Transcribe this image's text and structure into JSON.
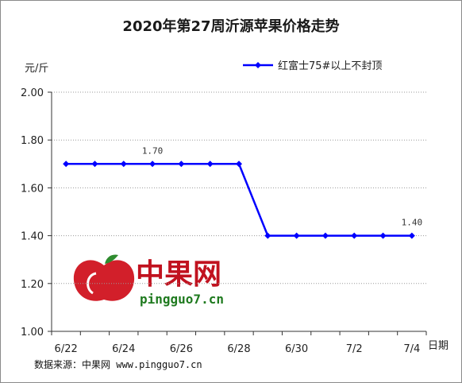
{
  "chart_data": {
    "type": "line",
    "title": "2020年第27周沂源苹果价格走势",
    "ylabel": "元/斤",
    "xlabel": "日期",
    "ylim": [
      1.0,
      2.0
    ],
    "yticks": [
      "2.00",
      "1.80",
      "1.60",
      "1.40",
      "1.20",
      "1.00"
    ],
    "xticks": [
      "6/22",
      "6/24",
      "6/26",
      "6/28",
      "6/30",
      "7/2",
      "7/4"
    ],
    "x": [
      "6/22",
      "6/23",
      "6/24",
      "6/25",
      "6/26",
      "6/27",
      "6/28",
      "6/29",
      "6/30",
      "7/1",
      "7/2",
      "7/3",
      "7/4"
    ],
    "series": [
      {
        "name": "红富士75#以上不封顶",
        "values": [
          1.7,
          1.7,
          1.7,
          1.7,
          1.7,
          1.7,
          1.7,
          1.4,
          1.4,
          1.4,
          1.4,
          1.4,
          1.4
        ],
        "color": "#0000ff"
      }
    ],
    "data_labels": [
      {
        "index": 3,
        "text": "1.70"
      },
      {
        "index": 12,
        "text": "1.40"
      }
    ],
    "grid": "horizontal",
    "legend_position": "top-right"
  },
  "source_text": "数据来源：中果网 www.pingguo7.cn",
  "watermark": {
    "text": "中果网",
    "url": "pingguo7.cn"
  }
}
